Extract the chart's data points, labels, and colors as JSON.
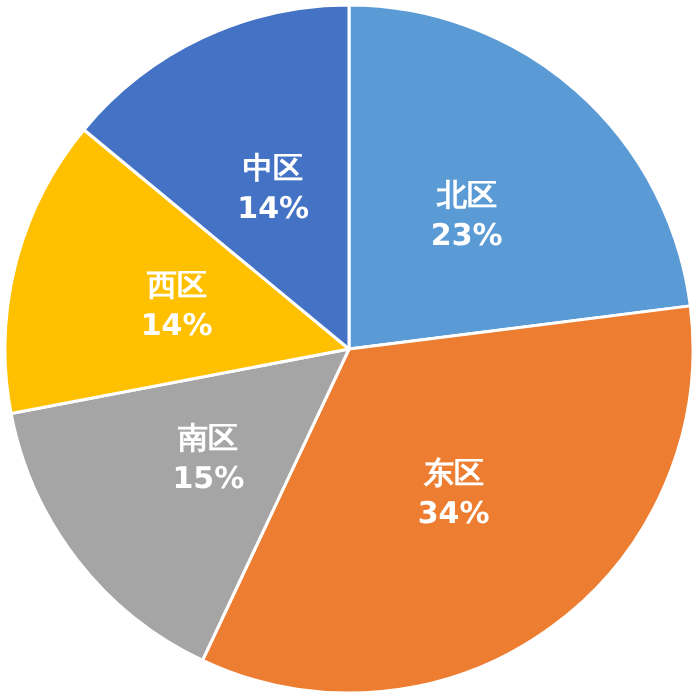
{
  "chart_data": {
    "type": "pie",
    "categories": [
      "北区",
      "东区",
      "南区",
      "西区",
      "中区"
    ],
    "values": [
      23,
      34,
      15,
      14,
      14
    ],
    "value_labels": [
      "23%",
      "34%",
      "15%",
      "14%",
      "14%"
    ],
    "colors": [
      "#5b9bd5",
      "#ed7d31",
      "#a5a5a5",
      "#ffc000",
      "#4472c4"
    ],
    "legend": false
  }
}
